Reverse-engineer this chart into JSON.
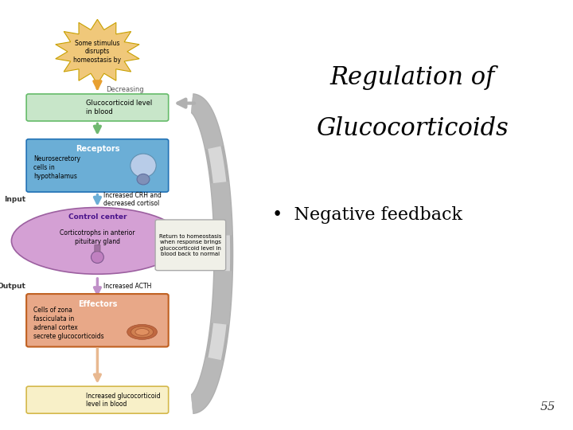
{
  "title_line1": "Regulation of",
  "title_line2": "Glucocorticoids",
  "bullet": "Negative feedback",
  "page_number": "55",
  "bg_color": "#ffffff",
  "title_color": "#000000",
  "bullet_color": "#000000",
  "title_fontsize": 22,
  "bullet_fontsize": 16,
  "page_num_fontsize": 11,
  "diagram": {
    "stimulus_text": "Some stimulus\ndisrupts\nhomeostasis by",
    "stimulus_color": "#f0c87a",
    "stimulus_border": "#c8a000",
    "decreasing_text": "Decreasing",
    "glucocorticoid_box_text": "Glucocorticoid level\nin blood",
    "glucocorticoid_box_color": "#c8e6c9",
    "glucocorticoid_box_border": "#66bb6a",
    "receptors_label": "Receptors",
    "receptors_color": "#6baed6",
    "receptors_border": "#2171b5",
    "receptors_text": "Neurosecretory\ncells in\nhypothalamus",
    "input_label": "Input",
    "input_arrow_text": "Increased CRH and\ndecreased cortisol",
    "control_label": "Control center",
    "control_color": "#d4a0d4",
    "control_border": "#9c60a0",
    "control_text": "Corticotrophs in anterior\npituitary gland",
    "return_box_text": "Return to homeostasis\nwhen response brings\nglucocorticoid level in\nblood back to normal",
    "return_box_color": "#f0f0e8",
    "return_box_border": "#aaaaaa",
    "output_label": "Output",
    "output_arrow_text": "Increased ACTH",
    "effectors_label": "Effectors",
    "effectors_color": "#e8a888",
    "effectors_border": "#c06020",
    "effectors_text": "Cells of zona\nfasciculata in\nadrenal cortex\nsecrete glucocorticoids",
    "result_box_text": "Increased glucocorticoid\nlevel in blood",
    "result_box_color": "#f8f0c8",
    "result_box_border": "#d4b84a",
    "feedback_arrow_color": "#c0c0c0",
    "arrow_down_color": "#e8a030",
    "arrow_green_color": "#70b870",
    "arrow_blue_color": "#6baed6",
    "arrow_purple_color": "#c090c8",
    "arrow_peach_color": "#e8b890"
  }
}
